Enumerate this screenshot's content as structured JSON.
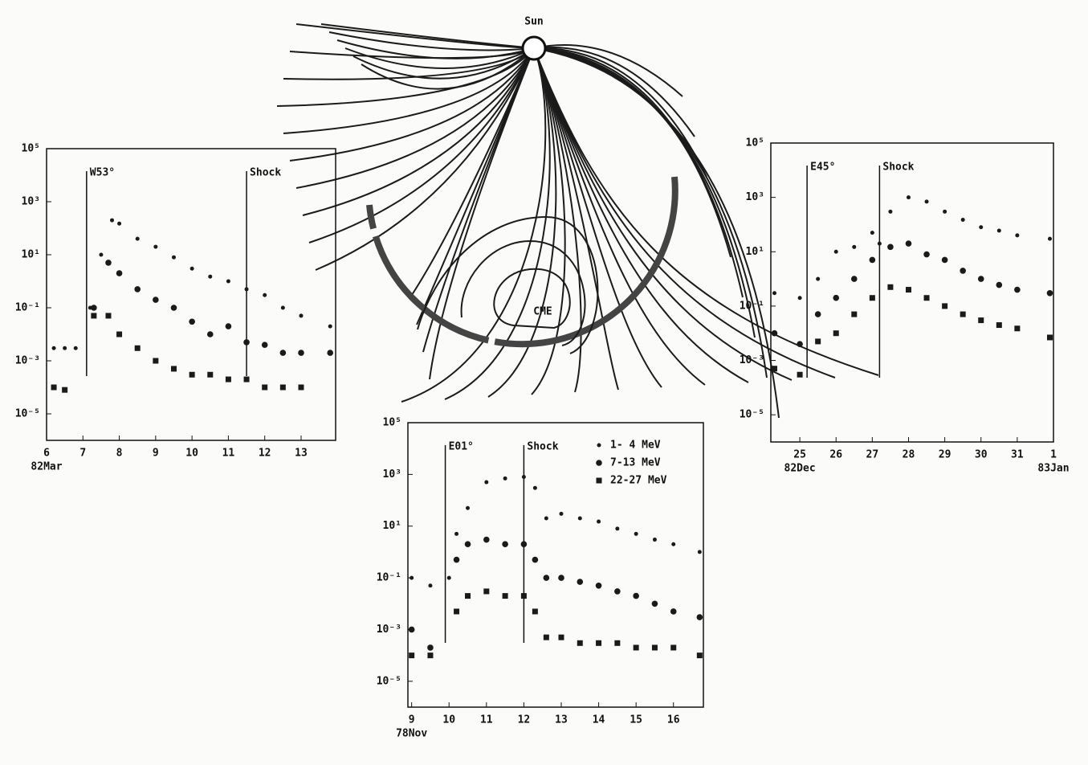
{
  "chart_data": [
    {
      "type": "scatter",
      "log_y": true,
      "xlim": [
        6,
        13.95
      ],
      "ylim": [
        1e-06,
        100000
      ],
      "yticks": [
        {
          "value": 100000,
          "label": "10⁵"
        },
        {
          "value": 1000,
          "label": "10³"
        },
        {
          "value": 10,
          "label": "10¹"
        },
        {
          "value": 0.1,
          "label": "10⁻¹"
        },
        {
          "value": 0.001,
          "label": "10⁻³"
        },
        {
          "value": 1e-05,
          "label": "10⁻⁵"
        }
      ],
      "xticks": [
        6,
        7,
        8,
        9,
        10,
        11,
        12,
        13
      ],
      "x_date_labels": [
        {
          "value": 6,
          "label": "82Mar"
        }
      ],
      "markers": [
        {
          "x": 7.1,
          "label": "W53°"
        },
        {
          "x": 11.5,
          "label": "Shock"
        }
      ],
      "series": [
        {
          "color": "#1a1a1a",
          "marker": "dot",
          "x": [
            6.2,
            6.5,
            6.8,
            7.2,
            7.5,
            7.8,
            8,
            8.5,
            9,
            9.5,
            10,
            10.5,
            11,
            11.5,
            12,
            12.5,
            13,
            13.8
          ],
          "values": [
            0.003,
            0.003,
            0.003,
            0.1,
            10,
            200,
            150,
            40,
            20,
            8,
            3,
            1.5,
            1,
            0.5,
            0.3,
            0.1,
            0.05,
            0.02
          ]
        },
        {
          "color": "#1a1a1a",
          "marker": "circle",
          "x": [
            7.3,
            7.7,
            8,
            8.5,
            9,
            9.5,
            10,
            10.5,
            11,
            11.5,
            12,
            12.5,
            13,
            13.8
          ],
          "values": [
            0.1,
            5,
            2,
            0.5,
            0.2,
            0.1,
            0.03,
            0.01,
            0.02,
            0.005,
            0.004,
            0.002,
            0.002,
            0.002
          ]
        },
        {
          "color": "#1a1a1a",
          "marker": "square",
          "x": [
            6.2,
            6.5,
            7.3,
            7.7,
            8,
            8.5,
            9,
            9.5,
            10,
            10.5,
            11,
            11.5,
            12,
            12.5,
            13
          ],
          "values": [
            0.0001,
            8e-05,
            0.05,
            0.05,
            0.01,
            0.003,
            0.001,
            0.0005,
            0.0003,
            0.0003,
            0.0002,
            0.0002,
            0.0001,
            0.0001,
            0.0001
          ]
        }
      ]
    },
    {
      "type": "scatter",
      "log_y": true,
      "xlim": [
        24.2,
        32
      ],
      "ylim": [
        1e-06,
        100000
      ],
      "yticks": [
        {
          "value": 100000,
          "label": "10⁵"
        },
        {
          "value": 1000,
          "label": "10³"
        },
        {
          "value": 10,
          "label": "10¹"
        },
        {
          "value": 0.1,
          "label": "10⁻¹"
        },
        {
          "value": 0.001,
          "label": "10⁻³"
        },
        {
          "value": 1e-05,
          "label": "10⁻⁵"
        }
      ],
      "xticks": [
        25,
        26,
        27,
        28,
        29,
        30,
        31,
        {
          "value": 32,
          "label": "1"
        }
      ],
      "x_date_labels": [
        {
          "value": 25,
          "label": "82Dec"
        },
        {
          "value": 32,
          "label": "83Jan"
        }
      ],
      "markers": [
        {
          "x": 25.2,
          "label": "E45°"
        },
        {
          "x": 27.2,
          "label": "Shock"
        }
      ],
      "series": [
        {
          "color": "#1a1a1a",
          "marker": "dot",
          "x": [
            24.3,
            25,
            25.5,
            26,
            26.5,
            27,
            27.2,
            27.5,
            28,
            28.5,
            29,
            29.5,
            30,
            30.5,
            31,
            31.9
          ],
          "values": [
            0.3,
            0.2,
            1,
            10,
            15,
            50,
            20,
            300,
            1000,
            700,
            300,
            150,
            80,
            60,
            40,
            30
          ]
        },
        {
          "color": "#1a1a1a",
          "marker": "circle",
          "x": [
            24.3,
            25,
            25.5,
            26,
            26.5,
            27,
            27.5,
            28,
            28.5,
            29,
            29.5,
            30,
            30.5,
            31,
            31.9
          ],
          "values": [
            0.01,
            0.004,
            0.05,
            0.2,
            1,
            5,
            15,
            20,
            8,
            5,
            2,
            1,
            0.6,
            0.4,
            0.3
          ]
        },
        {
          "color": "#1a1a1a",
          "marker": "square",
          "x": [
            24.3,
            25,
            25.5,
            26,
            26.5,
            27,
            27.5,
            28,
            28.5,
            29,
            29.5,
            30,
            30.5,
            31,
            31.9
          ],
          "values": [
            0.0005,
            0.0003,
            0.005,
            0.01,
            0.05,
            0.2,
            0.5,
            0.4,
            0.2,
            0.1,
            0.05,
            0.03,
            0.02,
            0.015,
            0.007
          ]
        }
      ]
    },
    {
      "type": "scatter",
      "log_y": true,
      "xlim": [
        8.9,
        16.8
      ],
      "ylim": [
        1e-06,
        100000
      ],
      "legend": "upper right",
      "yticks": [
        {
          "value": 100000,
          "label": "10⁵"
        },
        {
          "value": 1000,
          "label": "10³"
        },
        {
          "value": 10,
          "label": "10¹"
        },
        {
          "value": 0.1,
          "label": "10⁻¹"
        },
        {
          "value": 0.001,
          "label": "10⁻³"
        },
        {
          "value": 1e-05,
          "label": "10⁻⁵"
        }
      ],
      "xticks": [
        9,
        10,
        11,
        12,
        13,
        14,
        15,
        16
      ],
      "x_date_labels": [
        {
          "value": 9,
          "label": "78Nov"
        }
      ],
      "markers": [
        {
          "x": 9.9,
          "label": "E01°"
        },
        {
          "x": 12,
          "label": "Shock"
        }
      ],
      "series": [
        {
          "name": "1- 4 MeV",
          "color": "#1a1a1a",
          "marker": "dot",
          "x": [
            9,
            9.5,
            10,
            10.2,
            10.5,
            11,
            11.5,
            12,
            12.3,
            12.6,
            13,
            13.5,
            14,
            14.5,
            15,
            15.5,
            16,
            16.7
          ],
          "values": [
            0.1,
            0.05,
            0.1,
            5,
            50,
            500,
            700,
            800,
            300,
            20,
            30,
            20,
            15,
            8,
            5,
            3,
            2,
            1
          ]
        },
        {
          "name": "7-13 MeV",
          "color": "#1a1a1a",
          "marker": "circle",
          "x": [
            9,
            9.5,
            10.2,
            10.5,
            11,
            11.5,
            12,
            12.3,
            12.6,
            13,
            13.5,
            14,
            14.5,
            15,
            15.5,
            16,
            16.7
          ],
          "values": [
            0.001,
            0.0002,
            0.5,
            2,
            3,
            2,
            2,
            0.5,
            0.1,
            0.1,
            0.07,
            0.05,
            0.03,
            0.02,
            0.01,
            0.005,
            0.003
          ]
        },
        {
          "name": "22-27 MeV",
          "color": "#1a1a1a",
          "marker": "square",
          "x": [
            9,
            9.5,
            10.2,
            10.5,
            11,
            11.5,
            12,
            12.3,
            12.6,
            13,
            13.5,
            14,
            14.5,
            15,
            15.5,
            16,
            16.7
          ],
          "values": [
            0.0001,
            0.0001,
            0.005,
            0.02,
            0.03,
            0.02,
            0.02,
            0.005,
            0.0005,
            0.0005,
            0.0003,
            0.0003,
            0.0003,
            0.0002,
            0.0002,
            0.0002,
            0.0001
          ]
        }
      ]
    }
  ],
  "diagram": {
    "sun_label": "Sun",
    "cme_label": "CME"
  }
}
